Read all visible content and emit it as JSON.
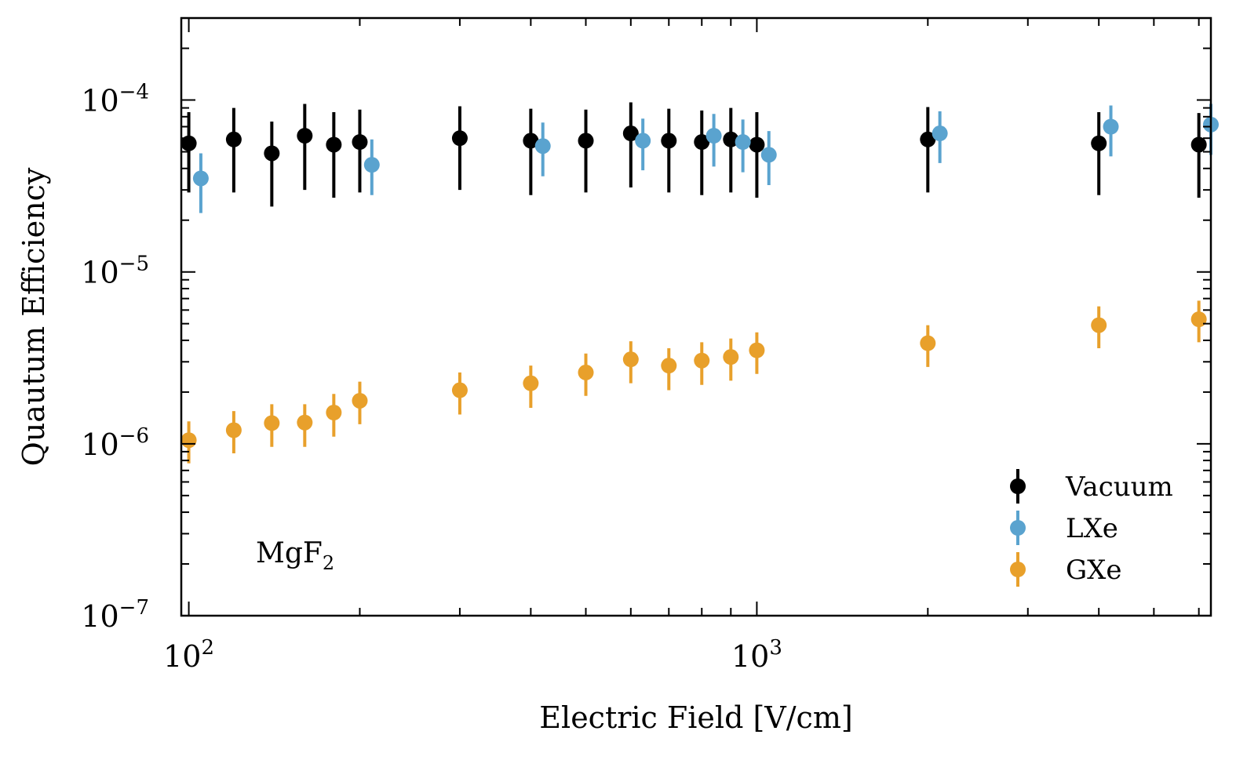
{
  "chart_data": {
    "type": "scatter",
    "title": "",
    "xlabel": "Electric Field [V/cm]",
    "ylabel": "Quautum Efficiency",
    "xscale": "log",
    "yscale": "log",
    "xlim": [
      97,
      6300
    ],
    "ylim": [
      1e-07,
      0.0003
    ],
    "x_ticks": [
      {
        "value": 100,
        "base": "10",
        "exp": "2"
      },
      {
        "value": 1000,
        "base": "10",
        "exp": "3"
      }
    ],
    "y_ticks": [
      {
        "value": 1e-07,
        "base": "10",
        "exp": "−7"
      },
      {
        "value": 1e-06,
        "base": "10",
        "exp": "−6"
      },
      {
        "value": 1e-05,
        "base": "10",
        "exp": "−5"
      },
      {
        "value": 0.0001,
        "base": "10",
        "exp": "−4"
      }
    ],
    "grid": false,
    "legend_position": "lower-right",
    "annotation": {
      "text": "MgF",
      "subscript": "2"
    },
    "series": [
      {
        "name": "Vacuum",
        "color": "#000000",
        "x": [
          100,
          120,
          140,
          160,
          180,
          200,
          300,
          400,
          500,
          600,
          700,
          800,
          900,
          1000,
          2000,
          4000,
          6000
        ],
        "y": [
          5.6e-05,
          5.9e-05,
          4.9e-05,
          6.2e-05,
          5.5e-05,
          5.7e-05,
          6e-05,
          5.8e-05,
          5.8e-05,
          6.4e-05,
          5.8e-05,
          5.7e-05,
          5.9e-05,
          5.5e-05,
          5.9e-05,
          5.6e-05,
          5.5e-05
        ],
        "y_low": [
          2.9e-05,
          2.9e-05,
          2.4e-05,
          3e-05,
          2.7e-05,
          2.9e-05,
          3e-05,
          2.8e-05,
          2.9e-05,
          3.1e-05,
          2.9e-05,
          2.8e-05,
          2.9e-05,
          2.7e-05,
          2.9e-05,
          2.8e-05,
          2.7e-05
        ],
        "y_high": [
          8.5e-05,
          9e-05,
          7.5e-05,
          9.5e-05,
          8.5e-05,
          8.8e-05,
          9.2e-05,
          8.9e-05,
          8.8e-05,
          9.7e-05,
          8.9e-05,
          8.7e-05,
          9e-05,
          8.5e-05,
          9.1e-05,
          8.5e-05,
          8.4e-05
        ]
      },
      {
        "name": "LXe",
        "color": "#5aa3cf",
        "x": [
          105,
          210,
          420,
          630,
          840,
          945,
          1050,
          2100,
          4200,
          6300
        ],
        "y": [
          3.5e-05,
          4.2e-05,
          5.4e-05,
          5.8e-05,
          6.2e-05,
          5.7e-05,
          4.8e-05,
          6.4e-05,
          7e-05,
          7.2e-05
        ],
        "y_low": [
          2.2e-05,
          2.8e-05,
          3.6e-05,
          3.9e-05,
          4.1e-05,
          3.8e-05,
          3.2e-05,
          4.3e-05,
          4.7e-05,
          4.8e-05
        ],
        "y_high": [
          4.9e-05,
          5.9e-05,
          7.4e-05,
          7.8e-05,
          8.3e-05,
          7.7e-05,
          6.6e-05,
          8.6e-05,
          9.3e-05,
          9.5e-05
        ]
      },
      {
        "name": "GXe",
        "color": "#e8a02b",
        "x": [
          100,
          120,
          140,
          160,
          180,
          200,
          300,
          400,
          500,
          600,
          700,
          800,
          900,
          1000,
          2000,
          4000,
          6000
        ],
        "y": [
          1.05e-06,
          1.2e-06,
          1.32e-06,
          1.33e-06,
          1.52e-06,
          1.78e-06,
          2.05e-06,
          2.25e-06,
          2.6e-06,
          3.1e-06,
          2.85e-06,
          3.05e-06,
          3.2e-06,
          3.5e-06,
          3.85e-06,
          4.9e-06,
          5.3e-06
        ],
        "y_low": [
          7.7e-07,
          8.8e-07,
          9.6e-07,
          9.6e-07,
          1.1e-06,
          1.3e-06,
          1.48e-06,
          1.62e-06,
          1.9e-06,
          2.25e-06,
          2.05e-06,
          2.2e-06,
          2.33e-06,
          2.55e-06,
          2.8e-06,
          3.6e-06,
          3.9e-06
        ],
        "y_high": [
          1.35e-06,
          1.55e-06,
          1.7e-06,
          1.7e-06,
          1.95e-06,
          2.3e-06,
          2.6e-06,
          2.85e-06,
          3.35e-06,
          3.95e-06,
          3.6e-06,
          3.9e-06,
          4.1e-06,
          4.45e-06,
          4.9e-06,
          6.3e-06,
          6.8e-06
        ]
      }
    ]
  }
}
